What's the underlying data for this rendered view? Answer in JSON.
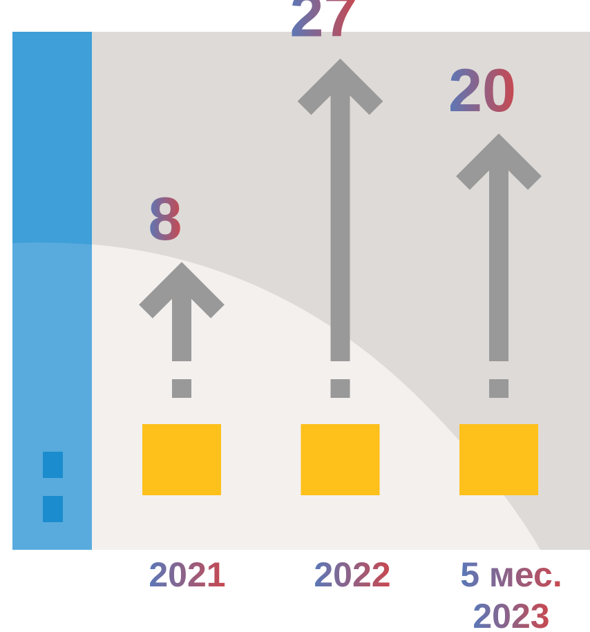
{
  "colors": {
    "panel_bg": "#dedad7",
    "panel_light": "#f3f0ee",
    "side_bar": "#3f9fd8",
    "side_bar_light": "#59abdd",
    "side_marks": "#1b8ccd",
    "arrow": "#999999",
    "box": "#fec01a",
    "text_grad_start": "#5a78b8",
    "text_grad_end": "#c9484f"
  },
  "icons": {
    "arrow": "up-arrow-icon",
    "box": "yellow-square-icon"
  },
  "chart_data": {
    "type": "bar",
    "categories": [
      "2021",
      "2022",
      "5 мес. 2023"
    ],
    "category_lines": [
      [
        "2021"
      ],
      [
        "2022"
      ],
      [
        "5 мес.",
        "2023"
      ]
    ],
    "values": [
      8,
      27,
      20
    ],
    "value_labels": [
      "8",
      "27",
      "20"
    ],
    "title": "",
    "xlabel": "",
    "ylabel": "",
    "grid": false,
    "legend": "none"
  }
}
